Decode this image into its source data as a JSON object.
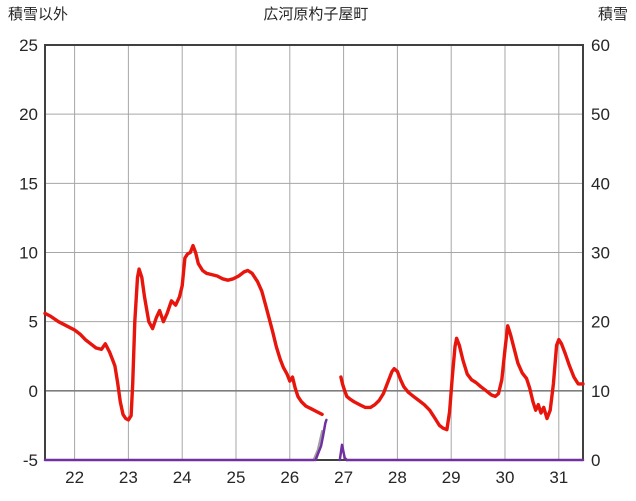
{
  "chart_data": {
    "type": "line",
    "title": "広河原杓子屋町",
    "left_axis": {
      "label": "積雪以外",
      "lim": [
        -5,
        25
      ],
      "ticks": [
        -5,
        0,
        5,
        10,
        15,
        20,
        25
      ]
    },
    "right_axis": {
      "label": "積雪",
      "lim": [
        0,
        60
      ],
      "ticks": [
        0,
        10,
        20,
        30,
        40,
        50,
        60
      ]
    },
    "x_axis": {
      "lim": [
        21.45,
        31.45
      ],
      "ticks": [
        22,
        23,
        24,
        25,
        26,
        27,
        28,
        29,
        30,
        31
      ]
    },
    "grid": true,
    "legend": "none",
    "colors": {
      "grid": "#a6a6a6",
      "zero_line": "#7f7f7f",
      "border": "#404040",
      "text": "#262626"
    },
    "series": [
      {
        "name": "gray-line",
        "axis": "right",
        "color": "#a0a0a0",
        "width": 2,
        "segments": [
          [
            [
              26.44,
              0
            ],
            [
              26.52,
              1.5
            ],
            [
              26.6,
              4.2
            ]
          ]
        ]
      },
      {
        "name": "purple-line",
        "axis": "right",
        "color": "#7030a0",
        "width": 2.5,
        "segments": [
          [
            [
              21.45,
              0
            ],
            [
              26.45,
              0
            ]
          ],
          [
            [
              26.48,
              0
            ],
            [
              26.54,
              1.2
            ],
            [
              26.58,
              2.0
            ],
            [
              26.62,
              3.5
            ],
            [
              26.66,
              5.3
            ],
            [
              26.68,
              5.8
            ]
          ],
          [
            [
              26.93,
              0
            ],
            [
              26.97,
              2.2
            ],
            [
              27.02,
              0.3
            ],
            [
              27.06,
              0
            ]
          ],
          [
            [
              27.06,
              0
            ],
            [
              31.45,
              0
            ]
          ]
        ]
      },
      {
        "name": "red-line",
        "axis": "left",
        "color": "#e8150d",
        "width": 3.4,
        "segments": [
          [
            [
              21.45,
              5.6
            ],
            [
              21.55,
              5.4
            ],
            [
              21.7,
              5.0
            ],
            [
              21.85,
              4.7
            ],
            [
              22.0,
              4.4
            ],
            [
              22.1,
              4.1
            ],
            [
              22.2,
              3.7
            ],
            [
              22.3,
              3.4
            ],
            [
              22.4,
              3.1
            ],
            [
              22.5,
              3.0
            ],
            [
              22.57,
              3.4
            ],
            [
              22.65,
              2.8
            ],
            [
              22.7,
              2.3
            ],
            [
              22.75,
              1.8
            ],
            [
              22.8,
              0.6
            ],
            [
              22.85,
              -0.8
            ],
            [
              22.9,
              -1.7
            ],
            [
              22.95,
              -2.0
            ],
            [
              23.0,
              -2.1
            ],
            [
              23.05,
              -1.8
            ],
            [
              23.08,
              0.5
            ],
            [
              23.12,
              5.0
            ],
            [
              23.17,
              8.2
            ],
            [
              23.2,
              8.8
            ],
            [
              23.25,
              8.2
            ],
            [
              23.3,
              6.8
            ],
            [
              23.38,
              5.0
            ],
            [
              23.45,
              4.5
            ],
            [
              23.52,
              5.3
            ],
            [
              23.58,
              5.8
            ],
            [
              23.65,
              5.0
            ],
            [
              23.72,
              5.6
            ],
            [
              23.8,
              6.5
            ],
            [
              23.88,
              6.2
            ],
            [
              23.95,
              6.8
            ],
            [
              24.0,
              7.6
            ],
            [
              24.05,
              9.6
            ],
            [
              24.1,
              9.9
            ],
            [
              24.15,
              10.0
            ],
            [
              24.2,
              10.5
            ],
            [
              24.25,
              10.0
            ],
            [
              24.3,
              9.2
            ],
            [
              24.38,
              8.7
            ],
            [
              24.45,
              8.5
            ],
            [
              24.55,
              8.4
            ],
            [
              24.65,
              8.3
            ],
            [
              24.75,
              8.1
            ],
            [
              24.85,
              8.0
            ],
            [
              24.95,
              8.1
            ],
            [
              25.05,
              8.3
            ],
            [
              25.15,
              8.6
            ],
            [
              25.22,
              8.7
            ],
            [
              25.3,
              8.5
            ],
            [
              25.4,
              7.9
            ],
            [
              25.48,
              7.2
            ],
            [
              25.55,
              6.2
            ],
            [
              25.62,
              5.2
            ],
            [
              25.68,
              4.3
            ],
            [
              25.75,
              3.2
            ],
            [
              25.82,
              2.3
            ],
            [
              25.88,
              1.7
            ],
            [
              25.95,
              1.2
            ],
            [
              26.0,
              0.7
            ],
            [
              26.05,
              1.0
            ],
            [
              26.1,
              0.2
            ],
            [
              26.15,
              -0.4
            ],
            [
              26.22,
              -0.8
            ],
            [
              26.3,
              -1.1
            ],
            [
              26.4,
              -1.3
            ],
            [
              26.5,
              -1.5
            ],
            [
              26.6,
              -1.7
            ]
          ],
          [
            [
              26.95,
              1.0
            ],
            [
              26.98,
              0.5
            ],
            [
              27.02,
              0.0
            ],
            [
              27.06,
              -0.4
            ],
            [
              27.12,
              -0.6
            ],
            [
              27.2,
              -0.8
            ],
            [
              27.3,
              -1.0
            ],
            [
              27.4,
              -1.2
            ],
            [
              27.5,
              -1.2
            ],
            [
              27.58,
              -1.0
            ],
            [
              27.66,
              -0.7
            ],
            [
              27.74,
              -0.2
            ],
            [
              27.82,
              0.6
            ],
            [
              27.9,
              1.4
            ],
            [
              27.94,
              1.6
            ],
            [
              28.0,
              1.4
            ],
            [
              28.06,
              0.8
            ],
            [
              28.12,
              0.3
            ],
            [
              28.2,
              -0.1
            ],
            [
              28.3,
              -0.4
            ],
            [
              28.4,
              -0.7
            ],
            [
              28.5,
              -1.0
            ],
            [
              28.6,
              -1.4
            ],
            [
              28.7,
              -2.0
            ],
            [
              28.78,
              -2.5
            ],
            [
              28.85,
              -2.7
            ],
            [
              28.92,
              -2.8
            ],
            [
              28.97,
              -1.5
            ],
            [
              29.02,
              1.0
            ],
            [
              29.07,
              3.2
            ],
            [
              29.1,
              3.8
            ],
            [
              29.15,
              3.3
            ],
            [
              29.22,
              2.2
            ],
            [
              29.3,
              1.2
            ],
            [
              29.38,
              0.8
            ],
            [
              29.46,
              0.6
            ],
            [
              29.55,
              0.3
            ],
            [
              29.65,
              0.0
            ],
            [
              29.75,
              -0.3
            ],
            [
              29.82,
              -0.4
            ],
            [
              29.88,
              -0.2
            ],
            [
              29.94,
              0.8
            ],
            [
              30.0,
              3.0
            ],
            [
              30.05,
              4.7
            ],
            [
              30.1,
              4.1
            ],
            [
              30.16,
              3.2
            ],
            [
              30.24,
              2.0
            ],
            [
              30.32,
              1.3
            ],
            [
              30.4,
              0.9
            ],
            [
              30.46,
              0.2
            ],
            [
              30.52,
              -0.8
            ],
            [
              30.57,
              -1.4
            ],
            [
              30.62,
              -1.0
            ],
            [
              30.67,
              -1.6
            ],
            [
              30.72,
              -1.2
            ],
            [
              30.78,
              -2.0
            ],
            [
              30.84,
              -1.4
            ],
            [
              30.9,
              0.5
            ],
            [
              30.96,
              3.3
            ],
            [
              31.0,
              3.7
            ],
            [
              31.05,
              3.4
            ],
            [
              31.12,
              2.7
            ],
            [
              31.2,
              1.8
            ],
            [
              31.28,
              1.0
            ],
            [
              31.36,
              0.5
            ],
            [
              31.45,
              0.5
            ]
          ]
        ]
      }
    ]
  }
}
